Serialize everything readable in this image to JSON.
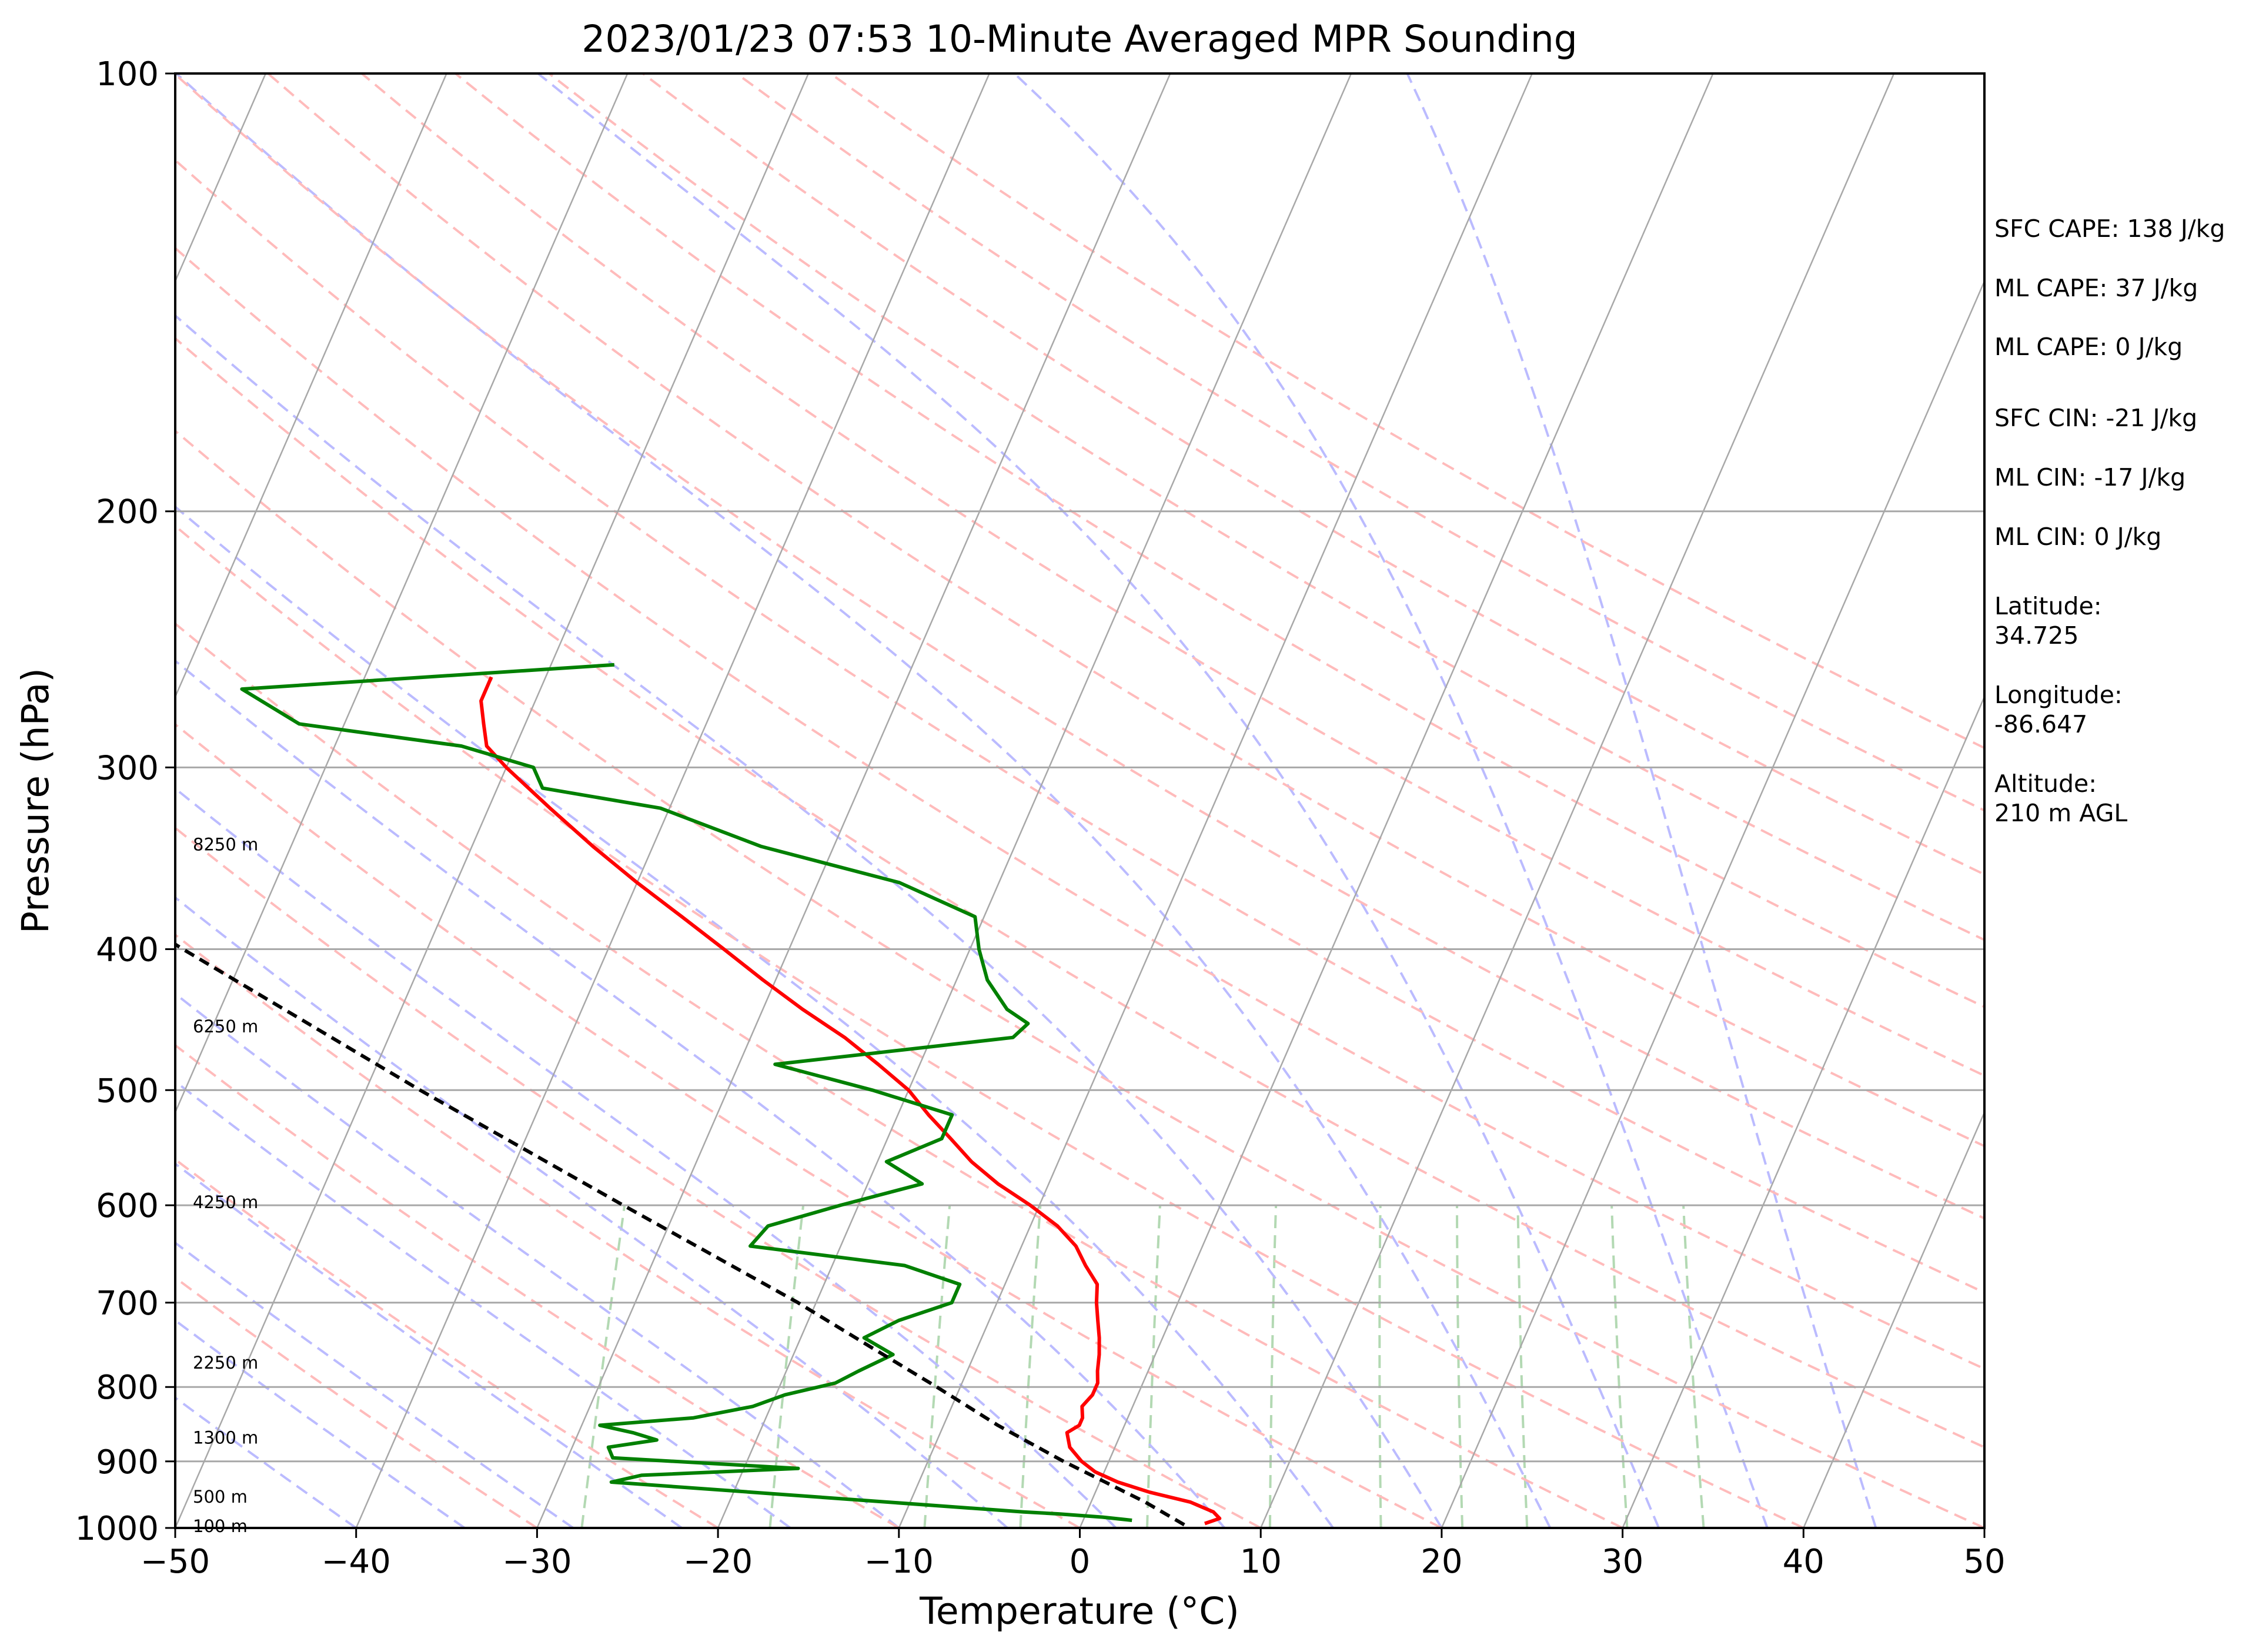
{
  "chart_data": {
    "type": "line",
    "title": "2023/01/23 07:53 10-Minute Averaged MPR Sounding",
    "xlabel": "Temperature (°C)",
    "ylabel": "Pressure (hPa)",
    "xlim": [
      -50,
      50
    ],
    "ylim": [
      1000,
      100
    ],
    "y_scale": "log",
    "x_ticks": [
      "−50",
      "−40",
      "−30",
      "−20",
      "−10",
      "0",
      "10",
      "20",
      "30",
      "40",
      "50"
    ],
    "y_ticks": [
      1000,
      900,
      800,
      700,
      600,
      500,
      400,
      300,
      200,
      100
    ],
    "skew_deg_c_per_unit": 35,
    "grid": true,
    "legend": "none",
    "colors": {
      "temperature": "#ff0000",
      "dewpoint": "#008000",
      "parcel": "#000000",
      "isotherm": "#a8a8a8",
      "dry_adiabat": "#ffbbbb",
      "moist_adiabat": "#bbbbff",
      "mixing_ratio": "#b3d9b3"
    },
    "series": [
      {
        "role": "temperature",
        "pressure": [
          993,
          985,
          975,
          960,
          945,
          930,
          915,
          900,
          880,
          860,
          850,
          840,
          825,
          810,
          795,
          780,
          760,
          740,
          720,
          700,
          680,
          660,
          640,
          620,
          600,
          580,
          560,
          540,
          520,
          500,
          480,
          460,
          440,
          420,
          400,
          380,
          360,
          340,
          320,
          300,
          290,
          280,
          270,
          260
        ],
        "values": [
          6.8,
          7.5,
          7.0,
          5.5,
          3.0,
          1.0,
          -0.5,
          -1.5,
          -2.5,
          -3.0,
          -2.5,
          -2.5,
          -2.8,
          -2.5,
          -2.5,
          -2.8,
          -3.1,
          -3.5,
          -4.0,
          -4.5,
          -4.9,
          -6.0,
          -7.0,
          -8.5,
          -10.5,
          -12.8,
          -14.8,
          -16.5,
          -18.3,
          -20.0,
          -22.3,
          -24.8,
          -27.8,
          -30.7,
          -33.6,
          -36.7,
          -40.0,
          -43.3,
          -46.6,
          -50.0,
          -51.6,
          -52.3,
          -53.0,
          -53.0
        ]
      },
      {
        "role": "dewpoint",
        "pressure": [
          988,
          983,
          978,
          975,
          945,
          930,
          920,
          910,
          895,
          880,
          870,
          860,
          850,
          840,
          825,
          810,
          795,
          780,
          760,
          740,
          720,
          700,
          680,
          660,
          640,
          620,
          600,
          580,
          560,
          540,
          520,
          500,
          480,
          460,
          450,
          440,
          420,
          400,
          380,
          360,
          340,
          320,
          310,
          300,
          290,
          280,
          265,
          255
        ],
        "values": [
          2.7,
          1.0,
          -1.5,
          -3.5,
          -19.0,
          -27.0,
          -25.5,
          -17.0,
          -27.5,
          -28.0,
          -25.5,
          -27.0,
          -29.0,
          -24.0,
          -21.0,
          -19.5,
          -17.0,
          -16.0,
          -14.5,
          -16.5,
          -15.0,
          -12.5,
          -12.5,
          -16.0,
          -25.0,
          -24.5,
          -21.0,
          -17.0,
          -19.5,
          -17.0,
          -17.0,
          -22.0,
          -28.0,
          -15.5,
          -15.0,
          -16.5,
          -18.3,
          -19.5,
          -20.5,
          -25.5,
          -34.0,
          -40.5,
          -47.5,
          -48.5,
          -53.0,
          -62.5,
          -66.5,
          -46.5
        ]
      },
      {
        "role": "parcel",
        "pressure": [
          995,
          960,
          930,
          900,
          850,
          800,
          750,
          700,
          600,
          500,
          400,
          300,
          255
        ],
        "values": [
          5.7,
          3.0,
          0.3,
          -2.5,
          -7.0,
          -11.3,
          -16.0,
          -21.0,
          -33.0,
          -47.0,
          -63.5,
          -84.0,
          -95.0
        ]
      }
    ],
    "height_labels": [
      {
        "text": "100 m",
        "pressure": 997
      },
      {
        "text": "500 m",
        "pressure": 952
      },
      {
        "text": "1300 m",
        "pressure": 867
      },
      {
        "text": "2250 m",
        "pressure": 770
      },
      {
        "text": "4250 m",
        "pressure": 597
      },
      {
        "text": "6250 m",
        "pressure": 452
      },
      {
        "text": "8250 m",
        "pressure": 339
      }
    ],
    "annotations": [
      "SFC CAPE: 138 J/kg",
      "ML CAPE: 37 J/kg",
      "ML CAPE: 0 J/kg",
      "SFC CIN: -21 J/kg",
      "ML CIN: -17 J/kg",
      "ML CIN: 0 J/kg",
      "Latitude:",
      "34.725",
      "Longitude:",
      "-86.647",
      "Altitude:",
      "210 m AGL"
    ]
  }
}
